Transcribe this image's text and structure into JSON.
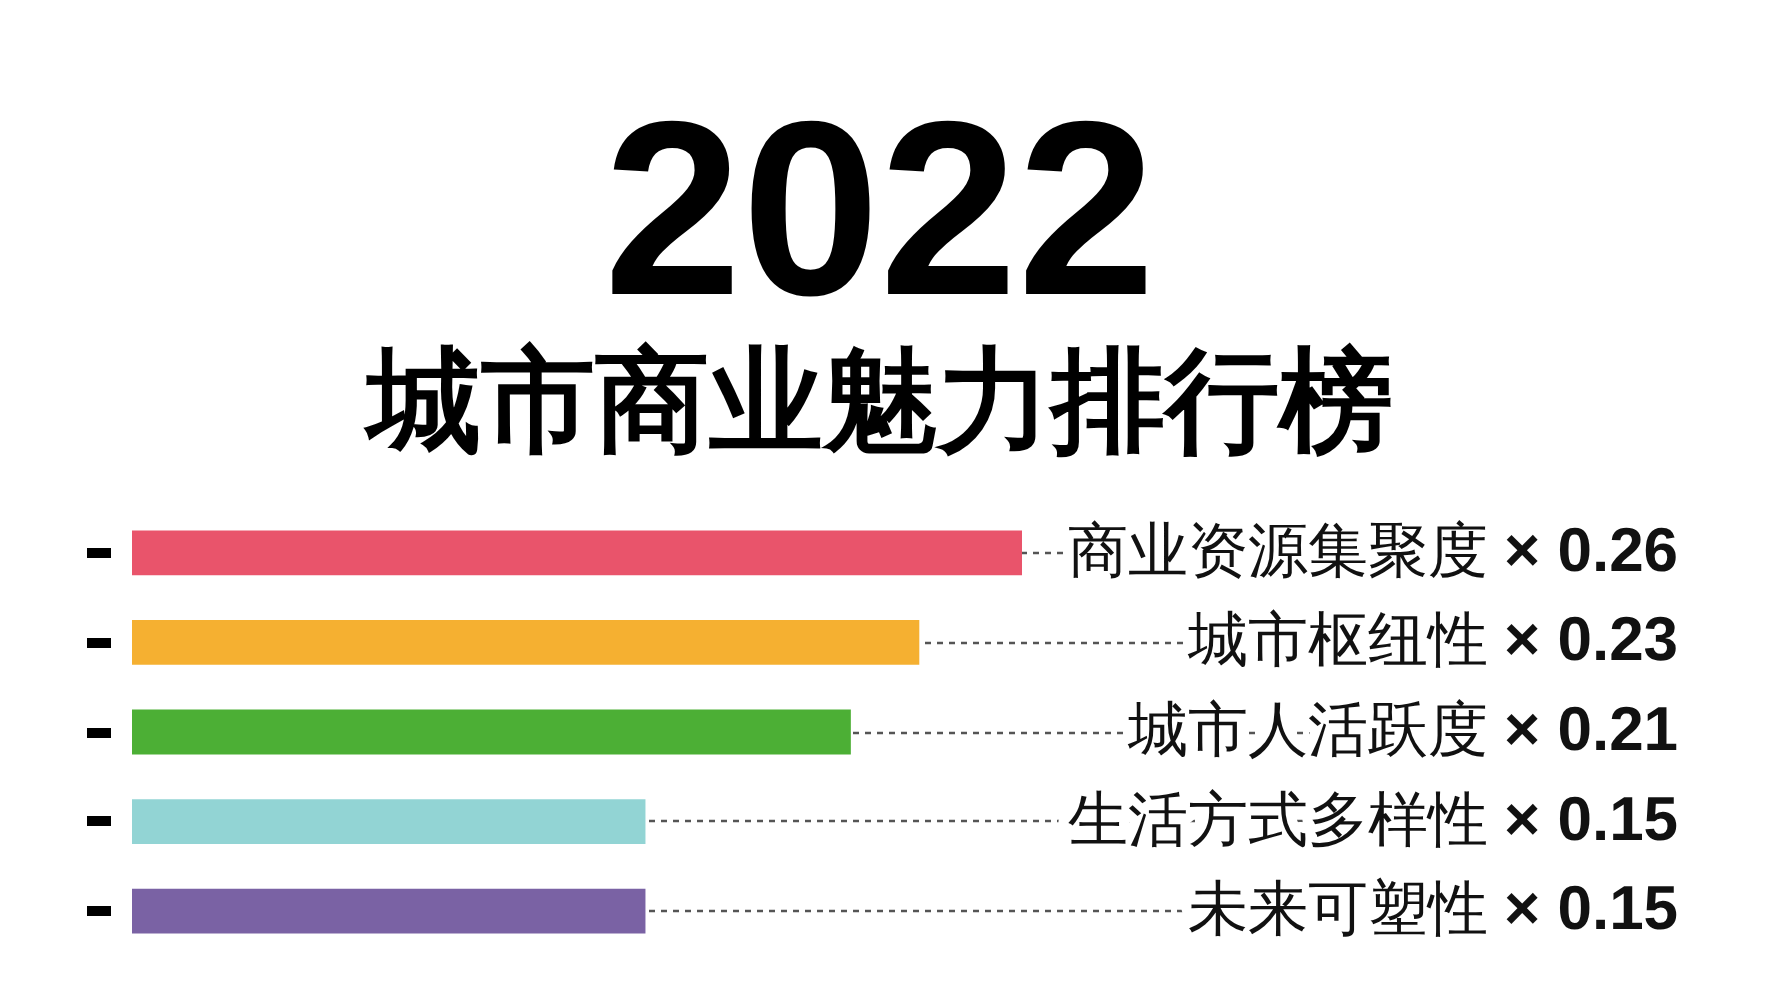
{
  "chart_data": {
    "type": "bar",
    "orientation": "horizontal",
    "title": "2022",
    "subtitle": "城市商业魅力排行榜",
    "categories": [
      "商业资源集聚度",
      "城市枢纽性",
      "城市人活跃度",
      "生活方式多样性",
      "未来可塑性"
    ],
    "values": [
      0.26,
      0.23,
      0.21,
      0.15,
      0.15
    ],
    "colors": [
      "#e9546b",
      "#f5b031",
      "#4caf35",
      "#92d4d4",
      "#7a62a4"
    ],
    "value_labels": [
      "× 0.26",
      "× 0.23",
      "× 0.21",
      "× 0.15",
      "× 0.15"
    ],
    "grid": "y",
    "tick_labels": "y"
  }
}
